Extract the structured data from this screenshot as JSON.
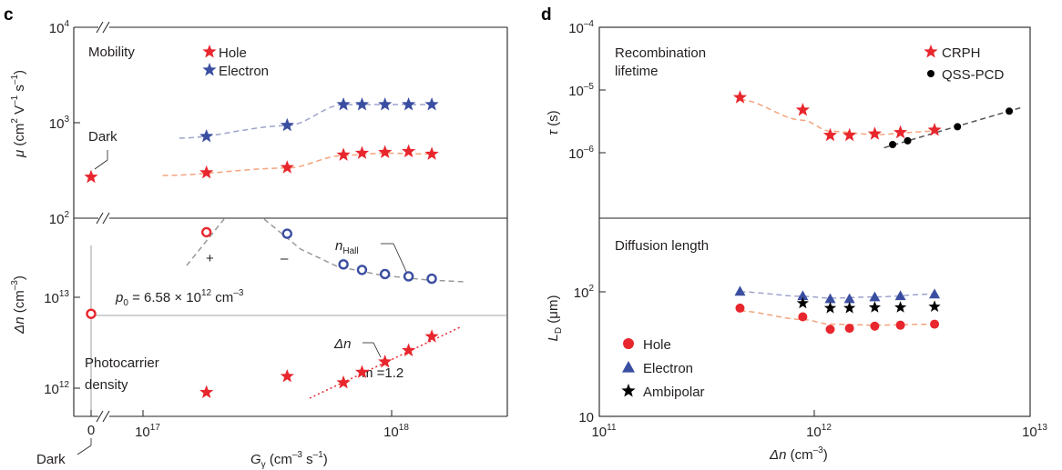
{
  "panels": {
    "c": {
      "label": "c",
      "x_axis": {
        "label_html": "G_γ (cm⁻³ s⁻¹)",
        "scale": "log",
        "range": [
          5e+16,
          3e+18
        ],
        "ticks": [
          "0",
          "10",
          "10"
        ],
        "tick_exp": [
          "",
          "17",
          "18"
        ],
        "dark_label": "Dark"
      },
      "top": {
        "ylabel": "μ (cm² V⁻¹ s⁻¹)",
        "scale": "log",
        "yrange": [
          100,
          10000
        ],
        "ticks": [
          {
            "b": "10",
            "e": "2"
          },
          {
            "b": "10",
            "e": "3"
          },
          {
            "b": "10",
            "e": "4"
          }
        ],
        "title": "Mobility",
        "dark_label": "Dark",
        "legend": [
          "Hole",
          "Electron"
        ]
      },
      "bottom": {
        "ylabel": "Δn (cm⁻³)",
        "scale": "log",
        "yrange": [
          500000000000.0,
          100000000000000.0
        ],
        "ticks": [
          {
            "b": "10",
            "e": "12"
          },
          {
            "b": "10",
            "e": "13"
          }
        ],
        "title_lines": [
          "Photocarrier",
          "density"
        ],
        "p0_label": "p₀ = 6.58 × 10¹² cm⁻³",
        "nhall_label": "n",
        "nhall_sub": "Hall",
        "dn_label": "Δn",
        "m_label": "m =1.2",
        "plus": "+",
        "minus": "–"
      }
    },
    "d": {
      "label": "d",
      "x_axis": {
        "label": "Δn (cm⁻³)",
        "scale": "log",
        "range": [
          100000000000.0,
          10000000000000.0
        ],
        "ticks": [
          {
            "b": "10",
            "e": "11"
          },
          {
            "b": "10",
            "e": "12"
          },
          {
            "b": "10",
            "e": "13"
          }
        ]
      },
      "top": {
        "ylabel": "τ (s)",
        "scale": "log",
        "yrange": [
          1e-07,
          0.0001
        ],
        "ticks": [
          {
            "b": "10",
            "e": "–6"
          },
          {
            "b": "10",
            "e": "–5"
          },
          {
            "b": "10",
            "e": "–4"
          }
        ],
        "title_lines": [
          "Recombination",
          "lifetime"
        ],
        "legend": [
          "CRPH",
          "QSS-PCD"
        ]
      },
      "bottom": {
        "ylabel": "L_D (μm)",
        "scale": "log",
        "yrange": [
          10,
          500
        ],
        "ticks": [
          {
            "b": "10",
            "e": ""
          },
          {
            "b": "10",
            "e": "2"
          }
        ],
        "title": "Diffusion length",
        "legend": [
          "Hole",
          "Electron",
          "Ambipolar"
        ]
      }
    }
  },
  "colors": {
    "hole": "#e8262d",
    "electron": "#3a4ea1",
    "black": "#000000",
    "hole_fit": "#f4a37b",
    "elec_fit": "#9ea3cc"
  },
  "chart_data": [
    {
      "type": "scatter",
      "panel": "c-top",
      "ylabel": "μ (cm² V⁻¹ s⁻¹)",
      "x_scale": "log",
      "y_scale": "log",
      "ylim": [
        100,
        10000
      ],
      "series": [
        {
          "name": "Hole",
          "x": [
            1.8e+17,
            3.8e+17,
            6.4e+17,
            7.6e+17,
            9.4e+17,
            1.17e+18,
            1.45e+18
          ],
          "y": [
            300,
            340,
            460,
            480,
            490,
            500,
            470
          ]
        },
        {
          "name": "Electron",
          "x": [
            1.8e+17,
            3.8e+17,
            6.4e+17,
            7.6e+17,
            9.4e+17,
            1.17e+18,
            1.45e+18
          ],
          "y": [
            720,
            940,
            1550,
            1550,
            1550,
            1550,
            1550
          ]
        }
      ],
      "dark_hole": 270
    },
    {
      "type": "scatter",
      "panel": "c-bottom",
      "ylabel": "Δn (cm⁻³)",
      "x_scale": "log",
      "y_scale": "log",
      "ylim": [
        500000000000.0,
        100000000000000.0
      ],
      "series": [
        {
          "name": "Δn",
          "x": [
            1.8e+17,
            3.8e+17,
            6.4e+17,
            7.6e+17,
            9.4e+17,
            1.17e+18,
            1.45e+18
          ],
          "y": [
            900000000000.0,
            1350000000000.0,
            1150000000000.0,
            1500000000000.0,
            1950000000000.0,
            2600000000000.0,
            3700000000000.0
          ]
        },
        {
          "name": "n_Hall",
          "x": [
            1.8e+17,
            3.8e+17,
            6.4e+17,
            7.6e+17,
            9.4e+17,
            1.17e+18,
            1.45e+18
          ],
          "y": [
            52000000000000.0,
            50000000000000.0,
            23000000000000.0,
            20000000000000.0,
            18000000000000.0,
            17000000000000.0,
            16000000000000.0
          ]
        }
      ],
      "dark_density": 6580000000000.0
    },
    {
      "type": "scatter",
      "panel": "d-top",
      "ylabel": "τ (s)",
      "xlabel": "Δn (cm⁻³)",
      "x_scale": "log",
      "y_scale": "log",
      "ylim": [
        1e-07,
        0.0001
      ],
      "series": [
        {
          "name": "CRPH",
          "x": [
            450000000000.0,
            880000000000.0,
            1180000000000.0,
            1450000000000.0,
            1900000000000.0,
            2500000000000.0,
            3600000000000.0
          ],
          "y": [
            7.6e-06,
            4.8e-06,
            1.9e-06,
            1.9e-06,
            2e-06,
            2.1e-06,
            2.3e-06
          ]
        },
        {
          "name": "QSS-PCD",
          "x": [
            2300000000000.0,
            2700000000000.0,
            4600000000000.0,
            8000000000000.0
          ],
          "y": [
            1.35e-06,
            1.55e-06,
            2.6e-06,
            4.6e-06
          ]
        }
      ]
    },
    {
      "type": "scatter",
      "panel": "d-bottom",
      "ylabel": "L_D (μm)",
      "xlabel": "Δn (cm⁻³)",
      "x_scale": "log",
      "y_scale": "log",
      "ylim": [
        10,
        500
      ],
      "series": [
        {
          "name": "Hole",
          "x": [
            450000000000.0,
            880000000000.0,
            1180000000000.0,
            1450000000000.0,
            1900000000000.0,
            2500000000000.0,
            3600000000000.0
          ],
          "y": [
            74,
            63,
            50,
            51,
            53,
            54,
            55
          ]
        },
        {
          "name": "Electron",
          "x": [
            450000000000.0,
            880000000000.0,
            1180000000000.0,
            1450000000000.0,
            1900000000000.0,
            2500000000000.0,
            3600000000000.0
          ],
          "y": [
            101,
            93,
            88,
            88,
            91,
            93,
            96
          ]
        },
        {
          "name": "Ambipolar",
          "x": [
            880000000000.0,
            1180000000000.0,
            1450000000000.0,
            1900000000000.0,
            2500000000000.0,
            3600000000000.0
          ],
          "y": [
            81,
            74,
            74,
            75,
            75,
            76
          ]
        }
      ]
    }
  ]
}
